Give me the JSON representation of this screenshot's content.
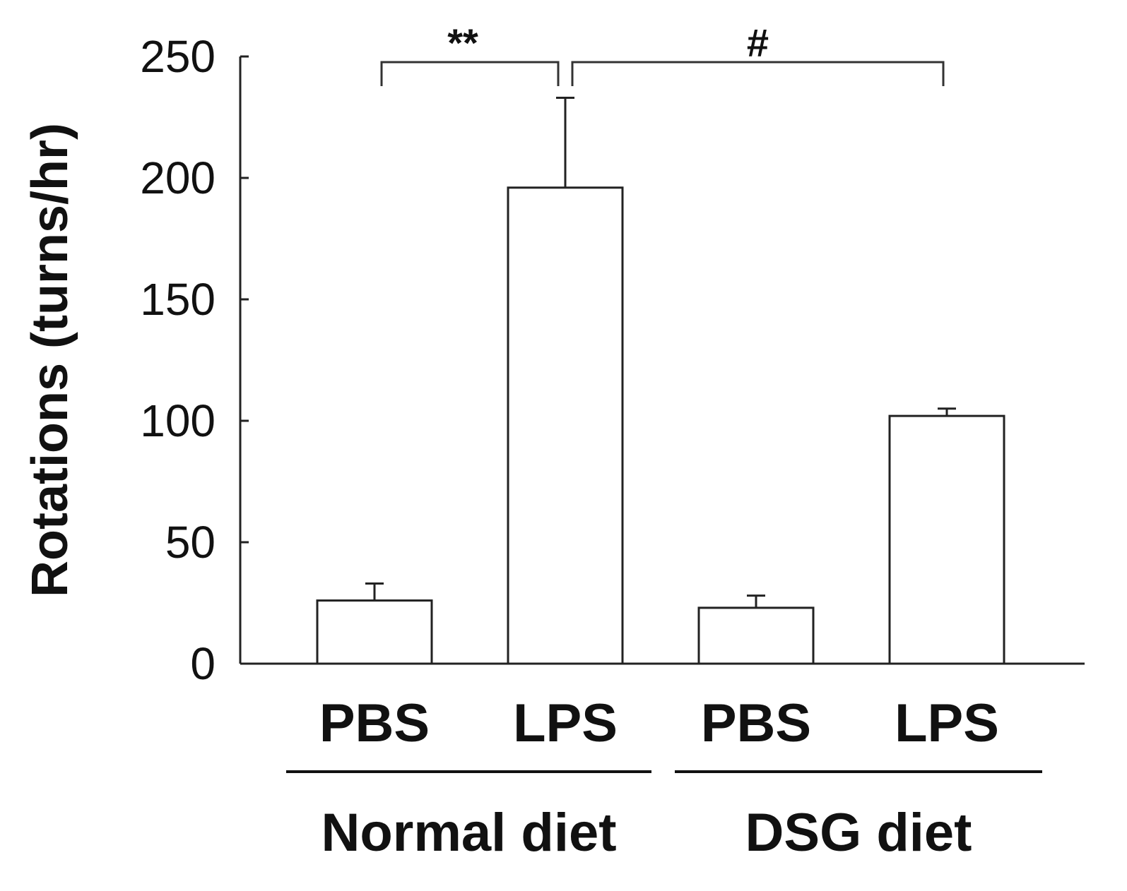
{
  "chart_data": {
    "type": "bar",
    "title": "",
    "xlabel": "",
    "ylabel": "Rotations (turns/hr)",
    "ylim": [
      0,
      250
    ],
    "yticks": [
      0,
      50,
      100,
      150,
      200,
      250
    ],
    "categories": [
      "PBS",
      "LPS",
      "PBS",
      "LPS"
    ],
    "groups": [
      {
        "label": "Normal diet",
        "categories": [
          0,
          1
        ]
      },
      {
        "label": "DSG diet",
        "categories": [
          2,
          3
        ]
      }
    ],
    "values": [
      26,
      196,
      23,
      102
    ],
    "errors": [
      7,
      37,
      5,
      3
    ],
    "significance": [
      {
        "label": "**",
        "from": 0,
        "to": 1
      },
      {
        "label": "#",
        "from": 1,
        "to": 3
      }
    ]
  }
}
